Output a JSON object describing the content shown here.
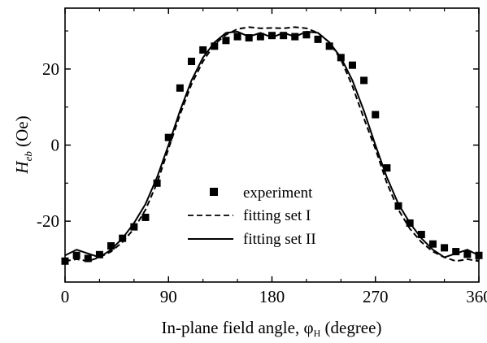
{
  "chart_data": {
    "type": "line",
    "xlabel": "In-plane field angle, φ",
    "xlabel_sub": "H",
    "xlabel_unit": " (degree)",
    "ylabel_main": "H",
    "ylabel_sub": "eb",
    "ylabel_unit": " (Oe)",
    "xlim": [
      0,
      360
    ],
    "ylim": [
      -36,
      36
    ],
    "xticks": [
      0,
      90,
      180,
      270,
      360
    ],
    "xtick_labels": [
      "0",
      "90",
      "180",
      "270",
      "360"
    ],
    "yticks": [
      20,
      0,
      -20
    ],
    "ytick_labels": [
      "20",
      "0",
      "-20"
    ],
    "grid": false,
    "legend_position": "center",
    "series": [
      {
        "name": "experiment",
        "style": "markers",
        "marker": "square",
        "color": "#000000",
        "points": [
          [
            0,
            -30.5
          ],
          [
            10,
            -29
          ],
          [
            20,
            -29.8
          ],
          [
            30,
            -28.8
          ],
          [
            40,
            -26.5
          ],
          [
            50,
            -24.5
          ],
          [
            60,
            -21.5
          ],
          [
            70,
            -19
          ],
          [
            80,
            -10
          ],
          [
            90,
            2
          ],
          [
            100,
            15
          ],
          [
            110,
            22
          ],
          [
            120,
            25
          ],
          [
            130,
            26
          ],
          [
            140,
            27.5
          ],
          [
            150,
            28.5
          ],
          [
            160,
            28.2
          ],
          [
            170,
            28.5
          ],
          [
            180,
            28.8
          ],
          [
            190,
            28.8
          ],
          [
            200,
            28.5
          ],
          [
            210,
            29
          ],
          [
            220,
            27.8
          ],
          [
            230,
            26
          ],
          [
            240,
            23
          ],
          [
            250,
            21
          ],
          [
            260,
            17
          ],
          [
            270,
            8
          ],
          [
            280,
            -6
          ],
          [
            290,
            -16
          ],
          [
            300,
            -20.5
          ],
          [
            310,
            -23.5
          ],
          [
            320,
            -26
          ],
          [
            330,
            -27
          ],
          [
            340,
            -28
          ],
          [
            350,
            -28.7
          ],
          [
            360,
            -29
          ]
        ]
      },
      {
        "name": "fitting set I",
        "style": "dashed",
        "color": "#000000",
        "points": [
          [
            0,
            -30.5
          ],
          [
            10,
            -30
          ],
          [
            20,
            -30.5
          ],
          [
            30,
            -29.5
          ],
          [
            40,
            -28
          ],
          [
            50,
            -25.5
          ],
          [
            60,
            -22
          ],
          [
            70,
            -17
          ],
          [
            80,
            -10
          ],
          [
            90,
            -1
          ],
          [
            100,
            8
          ],
          [
            110,
            16
          ],
          [
            120,
            22
          ],
          [
            130,
            26.5
          ],
          [
            140,
            29
          ],
          [
            150,
            30.5
          ],
          [
            160,
            31
          ],
          [
            170,
            30.7
          ],
          [
            180,
            30.8
          ],
          [
            190,
            30.7
          ],
          [
            200,
            31
          ],
          [
            210,
            30.7
          ],
          [
            220,
            29.5
          ],
          [
            230,
            27
          ],
          [
            240,
            22.5
          ],
          [
            250,
            15.5
          ],
          [
            260,
            7
          ],
          [
            270,
            -1
          ],
          [
            280,
            -10
          ],
          [
            290,
            -17
          ],
          [
            300,
            -22
          ],
          [
            310,
            -25.5
          ],
          [
            320,
            -28
          ],
          [
            330,
            -29.5
          ],
          [
            340,
            -30.5
          ],
          [
            350,
            -30
          ],
          [
            360,
            -30.5
          ]
        ]
      },
      {
        "name": "fitting set II",
        "style": "solid",
        "color": "#000000",
        "points": [
          [
            0,
            -29
          ],
          [
            10,
            -27.5
          ],
          [
            20,
            -28.5
          ],
          [
            30,
            -29.5
          ],
          [
            40,
            -27.5
          ],
          [
            50,
            -24.5
          ],
          [
            60,
            -20.5
          ],
          [
            70,
            -15.5
          ],
          [
            80,
            -8.5
          ],
          [
            90,
            0
          ],
          [
            100,
            9
          ],
          [
            110,
            17
          ],
          [
            120,
            23
          ],
          [
            130,
            27
          ],
          [
            140,
            29.5
          ],
          [
            150,
            29.8
          ],
          [
            160,
            28.5
          ],
          [
            170,
            29.5
          ],
          [
            180,
            28.3
          ],
          [
            190,
            29.5
          ],
          [
            200,
            28.5
          ],
          [
            210,
            29.8
          ],
          [
            220,
            29.5
          ],
          [
            230,
            27
          ],
          [
            240,
            23
          ],
          [
            250,
            17
          ],
          [
            260,
            9
          ],
          [
            270,
            0
          ],
          [
            280,
            -8.5
          ],
          [
            290,
            -15.5
          ],
          [
            300,
            -20.5
          ],
          [
            310,
            -24.5
          ],
          [
            320,
            -27.5
          ],
          [
            330,
            -29.5
          ],
          [
            340,
            -28.5
          ],
          [
            350,
            -27.5
          ],
          [
            360,
            -29
          ]
        ]
      }
    ]
  }
}
